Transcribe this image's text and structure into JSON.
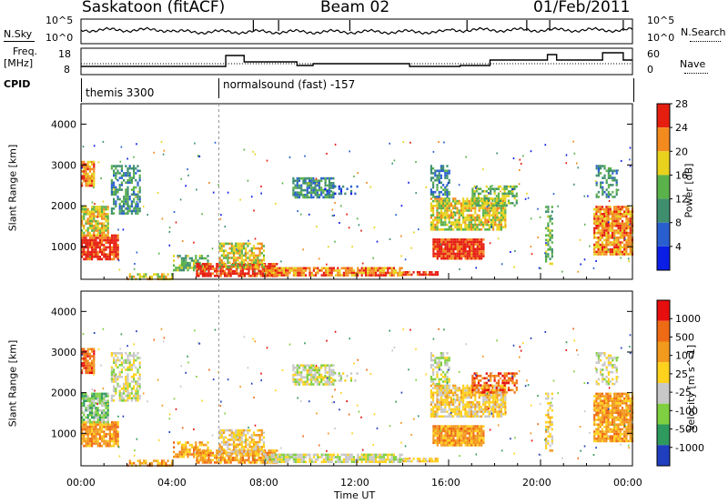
{
  "header": {
    "station": "Saskatoon (fitACF)",
    "beam": "Beam 02",
    "date": "01/Feb/2011"
  },
  "nsky_panel": {
    "left_label": "N.Sky",
    "left_ticks": [
      "10^5",
      "10^0"
    ],
    "right_ticks": [
      "10^5",
      "10^0"
    ],
    "right_label": "N.Search"
  },
  "freq_panel": {
    "left_label_1": "Freq.",
    "left_label_2": "[MHz]",
    "left_ticks": [
      "18",
      "8"
    ],
    "right_ticks": [
      "60",
      "0"
    ],
    "right_label": "Nave"
  },
  "cpid": {
    "label": "CPID",
    "segments": [
      {
        "text": "themis 3300",
        "start_hour": 0
      },
      {
        "text": "normalsound (fast) -157",
        "start_hour": 6
      }
    ]
  },
  "chart_data": [
    {
      "type": "heatmap",
      "name": "power",
      "ylabel": "Slant Range [km]",
      "y_ticks": [
        "1000",
        "2000",
        "3000",
        "4000"
      ],
      "ylim": [
        200,
        4500
      ],
      "xlim": [
        0,
        24
      ],
      "colorbar_label": "Power [dB]",
      "colorbar_ticks": [
        "4",
        "8",
        "12",
        "16",
        "20",
        "24",
        "28"
      ],
      "colorbar_colors": [
        "#0a1ee6",
        "#2a5fd0",
        "#3f8f6f",
        "#5bb24a",
        "#e8d21e",
        "#f28a1e",
        "#e61e10"
      ],
      "colorbar_range": [
        0,
        30
      ]
    },
    {
      "type": "heatmap",
      "name": "velocity",
      "ylabel": "Slant Range [km]",
      "y_ticks": [
        "1000",
        "2000",
        "3000",
        "4000"
      ],
      "ylim": [
        200,
        4500
      ],
      "xlim": [
        0,
        24
      ],
      "colorbar_label": "Velocity [m s^-1]",
      "colorbar_ticks": [
        "1000",
        "500",
        "100",
        "25",
        "-25",
        "-100",
        "-500",
        "-1000"
      ],
      "colorbar_colors": [
        "#1f3fbf",
        "#2f9a5e",
        "#7fd040",
        "#c8c8c8",
        "#ffd21e",
        "#f29a1e",
        "#ef6a14",
        "#e60e0e"
      ]
    }
  ],
  "x_axis": {
    "ticks": [
      "00:00",
      "04:00",
      "08:00",
      "12:00",
      "16:00",
      "20:00",
      "00:00"
    ],
    "label": "Time UT"
  }
}
